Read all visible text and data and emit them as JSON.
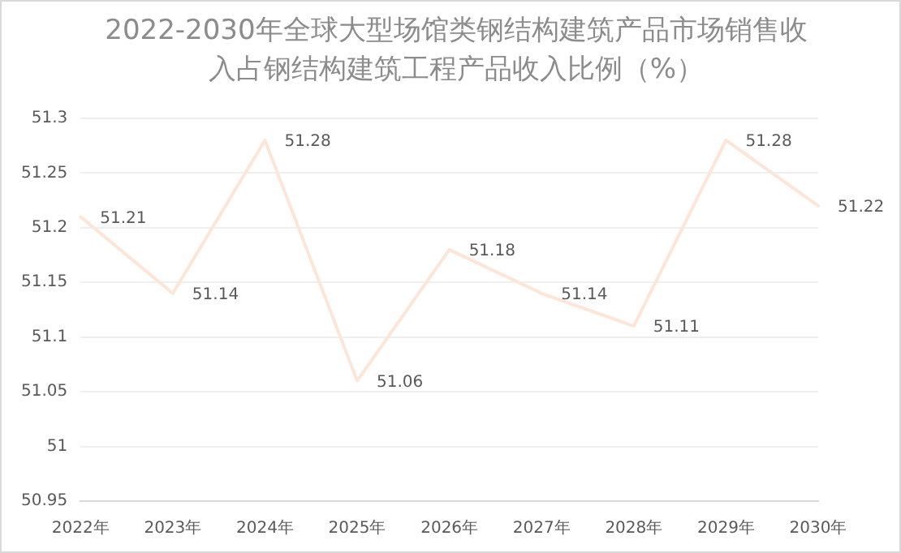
{
  "chart_data": {
    "type": "line",
    "title": "2022-2030年全球大型场馆类钢结构建筑产品市场销售收入占钢结构建筑工程产品收入比例（%）",
    "categories": [
      "2022年",
      "2023年",
      "2024年",
      "2025年",
      "2026年",
      "2027年",
      "2028年",
      "2029年",
      "2030年"
    ],
    "series": [
      {
        "color": "#fde6d8",
        "values": [
          51.21,
          51.14,
          51.28,
          51.06,
          51.18,
          51.14,
          51.11,
          51.28,
          51.22
        ]
      }
    ],
    "ylim": [
      50.95,
      51.3
    ],
    "yticks": [
      50.95,
      51,
      51.05,
      51.1,
      51.15,
      51.2,
      51.25,
      51.3
    ],
    "grid": "y",
    "legend": false,
    "marker": "none",
    "line_style": "solid",
    "data_labels": true
  }
}
